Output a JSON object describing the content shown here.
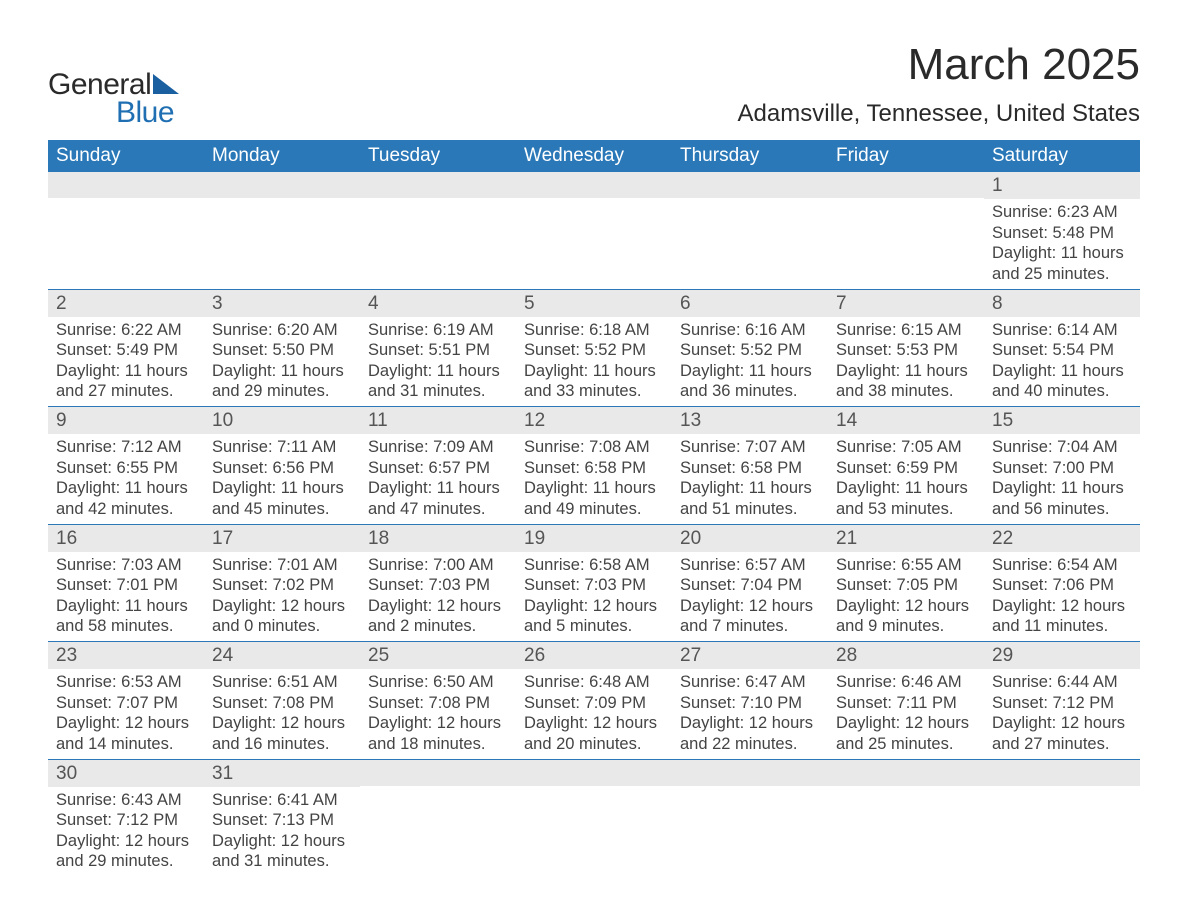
{
  "brand": {
    "word1": "General",
    "word2": "Blue"
  },
  "colors": {
    "header_bg": "#2a78b8",
    "header_text": "#ffffff",
    "row_border": "#2a78b8",
    "daynum_bg": "#e9e9e9",
    "daynum_text": "#555555",
    "body_text": "#444444",
    "title_text": "#2a2a2a",
    "logo_blue": "#1f6fb2",
    "logo_triangle": "#1a5fa0",
    "background": "#ffffff"
  },
  "typography": {
    "month_title_fontsize": 44,
    "location_fontsize": 24,
    "header_fontsize": 19,
    "daynum_fontsize": 19,
    "body_fontsize": 16.5,
    "logo_fontsize": 30
  },
  "title": "March 2025",
  "location": "Adamsville, Tennessee, United States",
  "day_headers": [
    "Sunday",
    "Monday",
    "Tuesday",
    "Wednesday",
    "Thursday",
    "Friday",
    "Saturday"
  ],
  "weeks": [
    [
      {
        "num": "",
        "sunrise": "",
        "sunset": "",
        "daylight": ""
      },
      {
        "num": "",
        "sunrise": "",
        "sunset": "",
        "daylight": ""
      },
      {
        "num": "",
        "sunrise": "",
        "sunset": "",
        "daylight": ""
      },
      {
        "num": "",
        "sunrise": "",
        "sunset": "",
        "daylight": ""
      },
      {
        "num": "",
        "sunrise": "",
        "sunset": "",
        "daylight": ""
      },
      {
        "num": "",
        "sunrise": "",
        "sunset": "",
        "daylight": ""
      },
      {
        "num": "1",
        "sunrise": "Sunrise: 6:23 AM",
        "sunset": "Sunset: 5:48 PM",
        "daylight": "Daylight: 11 hours and 25 minutes."
      }
    ],
    [
      {
        "num": "2",
        "sunrise": "Sunrise: 6:22 AM",
        "sunset": "Sunset: 5:49 PM",
        "daylight": "Daylight: 11 hours and 27 minutes."
      },
      {
        "num": "3",
        "sunrise": "Sunrise: 6:20 AM",
        "sunset": "Sunset: 5:50 PM",
        "daylight": "Daylight: 11 hours and 29 minutes."
      },
      {
        "num": "4",
        "sunrise": "Sunrise: 6:19 AM",
        "sunset": "Sunset: 5:51 PM",
        "daylight": "Daylight: 11 hours and 31 minutes."
      },
      {
        "num": "5",
        "sunrise": "Sunrise: 6:18 AM",
        "sunset": "Sunset: 5:52 PM",
        "daylight": "Daylight: 11 hours and 33 minutes."
      },
      {
        "num": "6",
        "sunrise": "Sunrise: 6:16 AM",
        "sunset": "Sunset: 5:52 PM",
        "daylight": "Daylight: 11 hours and 36 minutes."
      },
      {
        "num": "7",
        "sunrise": "Sunrise: 6:15 AM",
        "sunset": "Sunset: 5:53 PM",
        "daylight": "Daylight: 11 hours and 38 minutes."
      },
      {
        "num": "8",
        "sunrise": "Sunrise: 6:14 AM",
        "sunset": "Sunset: 5:54 PM",
        "daylight": "Daylight: 11 hours and 40 minutes."
      }
    ],
    [
      {
        "num": "9",
        "sunrise": "Sunrise: 7:12 AM",
        "sunset": "Sunset: 6:55 PM",
        "daylight": "Daylight: 11 hours and 42 minutes."
      },
      {
        "num": "10",
        "sunrise": "Sunrise: 7:11 AM",
        "sunset": "Sunset: 6:56 PM",
        "daylight": "Daylight: 11 hours and 45 minutes."
      },
      {
        "num": "11",
        "sunrise": "Sunrise: 7:09 AM",
        "sunset": "Sunset: 6:57 PM",
        "daylight": "Daylight: 11 hours and 47 minutes."
      },
      {
        "num": "12",
        "sunrise": "Sunrise: 7:08 AM",
        "sunset": "Sunset: 6:58 PM",
        "daylight": "Daylight: 11 hours and 49 minutes."
      },
      {
        "num": "13",
        "sunrise": "Sunrise: 7:07 AM",
        "sunset": "Sunset: 6:58 PM",
        "daylight": "Daylight: 11 hours and 51 minutes."
      },
      {
        "num": "14",
        "sunrise": "Sunrise: 7:05 AM",
        "sunset": "Sunset: 6:59 PM",
        "daylight": "Daylight: 11 hours and 53 minutes."
      },
      {
        "num": "15",
        "sunrise": "Sunrise: 7:04 AM",
        "sunset": "Sunset: 7:00 PM",
        "daylight": "Daylight: 11 hours and 56 minutes."
      }
    ],
    [
      {
        "num": "16",
        "sunrise": "Sunrise: 7:03 AM",
        "sunset": "Sunset: 7:01 PM",
        "daylight": "Daylight: 11 hours and 58 minutes."
      },
      {
        "num": "17",
        "sunrise": "Sunrise: 7:01 AM",
        "sunset": "Sunset: 7:02 PM",
        "daylight": "Daylight: 12 hours and 0 minutes."
      },
      {
        "num": "18",
        "sunrise": "Sunrise: 7:00 AM",
        "sunset": "Sunset: 7:03 PM",
        "daylight": "Daylight: 12 hours and 2 minutes."
      },
      {
        "num": "19",
        "sunrise": "Sunrise: 6:58 AM",
        "sunset": "Sunset: 7:03 PM",
        "daylight": "Daylight: 12 hours and 5 minutes."
      },
      {
        "num": "20",
        "sunrise": "Sunrise: 6:57 AM",
        "sunset": "Sunset: 7:04 PM",
        "daylight": "Daylight: 12 hours and 7 minutes."
      },
      {
        "num": "21",
        "sunrise": "Sunrise: 6:55 AM",
        "sunset": "Sunset: 7:05 PM",
        "daylight": "Daylight: 12 hours and 9 minutes."
      },
      {
        "num": "22",
        "sunrise": "Sunrise: 6:54 AM",
        "sunset": "Sunset: 7:06 PM",
        "daylight": "Daylight: 12 hours and 11 minutes."
      }
    ],
    [
      {
        "num": "23",
        "sunrise": "Sunrise: 6:53 AM",
        "sunset": "Sunset: 7:07 PM",
        "daylight": "Daylight: 12 hours and 14 minutes."
      },
      {
        "num": "24",
        "sunrise": "Sunrise: 6:51 AM",
        "sunset": "Sunset: 7:08 PM",
        "daylight": "Daylight: 12 hours and 16 minutes."
      },
      {
        "num": "25",
        "sunrise": "Sunrise: 6:50 AM",
        "sunset": "Sunset: 7:08 PM",
        "daylight": "Daylight: 12 hours and 18 minutes."
      },
      {
        "num": "26",
        "sunrise": "Sunrise: 6:48 AM",
        "sunset": "Sunset: 7:09 PM",
        "daylight": "Daylight: 12 hours and 20 minutes."
      },
      {
        "num": "27",
        "sunrise": "Sunrise: 6:47 AM",
        "sunset": "Sunset: 7:10 PM",
        "daylight": "Daylight: 12 hours and 22 minutes."
      },
      {
        "num": "28",
        "sunrise": "Sunrise: 6:46 AM",
        "sunset": "Sunset: 7:11 PM",
        "daylight": "Daylight: 12 hours and 25 minutes."
      },
      {
        "num": "29",
        "sunrise": "Sunrise: 6:44 AM",
        "sunset": "Sunset: 7:12 PM",
        "daylight": "Daylight: 12 hours and 27 minutes."
      }
    ],
    [
      {
        "num": "30",
        "sunrise": "Sunrise: 6:43 AM",
        "sunset": "Sunset: 7:12 PM",
        "daylight": "Daylight: 12 hours and 29 minutes."
      },
      {
        "num": "31",
        "sunrise": "Sunrise: 6:41 AM",
        "sunset": "Sunset: 7:13 PM",
        "daylight": "Daylight: 12 hours and 31 minutes."
      },
      {
        "num": "",
        "sunrise": "",
        "sunset": "",
        "daylight": ""
      },
      {
        "num": "",
        "sunrise": "",
        "sunset": "",
        "daylight": ""
      },
      {
        "num": "",
        "sunrise": "",
        "sunset": "",
        "daylight": ""
      },
      {
        "num": "",
        "sunrise": "",
        "sunset": "",
        "daylight": ""
      },
      {
        "num": "",
        "sunrise": "",
        "sunset": "",
        "daylight": ""
      }
    ]
  ]
}
